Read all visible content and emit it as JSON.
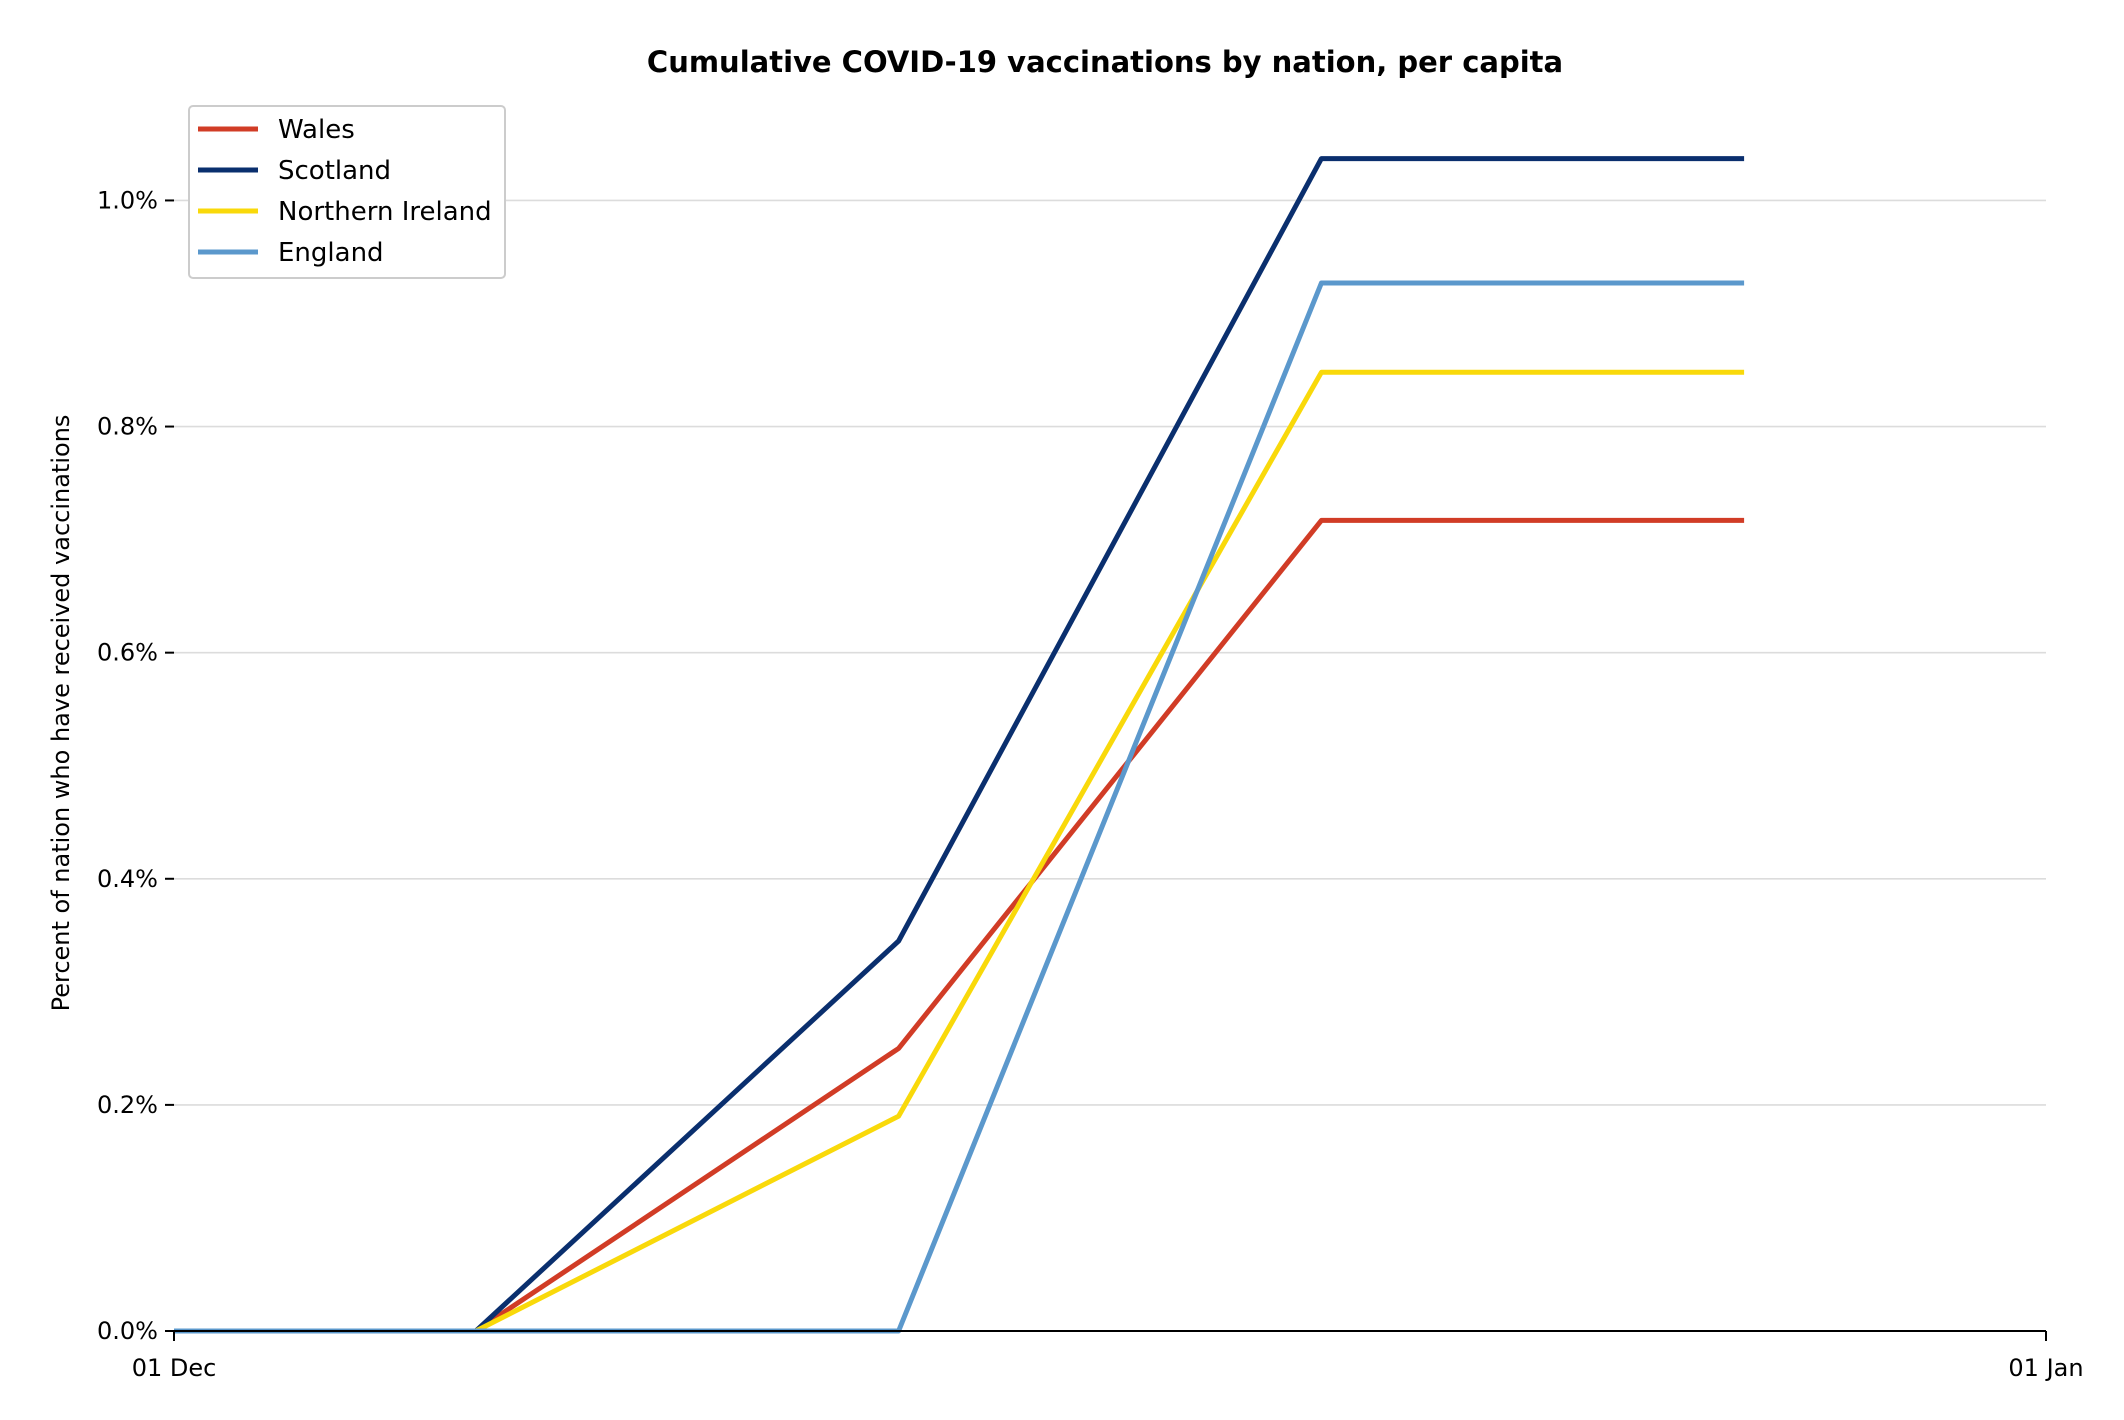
{
  "chart_data": {
    "type": "line",
    "title": "Cumulative COVID-19 vaccinations by nation, per capita",
    "xlabel": "",
    "ylabel": "Percent of nation who have received vaccinations",
    "x": [
      "2020-12-01",
      "2020-12-06",
      "2020-12-13",
      "2020-12-20",
      "2020-12-27"
    ],
    "xlim": [
      "2020-12-01",
      "2021-01-01"
    ],
    "xticks": [
      {
        "date": "2020-12-01",
        "label": "01 Dec"
      },
      {
        "date": "2021-01-01",
        "label": "01 Jan"
      }
    ],
    "ylim": [
      0,
      1.08
    ],
    "yticks": [
      0,
      0.2,
      0.4,
      0.6,
      0.8,
      1.0
    ],
    "ytick_labels": [
      "0.0%",
      "0.2%",
      "0.4%",
      "0.6%",
      "0.8%",
      "1.0%"
    ],
    "grid": true,
    "legend_position": "top-left",
    "series": [
      {
        "name": "Wales",
        "color": "#d13c26",
        "values": [
          0,
          0,
          0.25,
          0.717,
          0.717
        ]
      },
      {
        "name": "Scotland",
        "color": "#0a2f6e",
        "values": [
          0,
          0,
          0.345,
          1.037,
          1.037
        ]
      },
      {
        "name": "Northern Ireland",
        "color": "#f9d90a",
        "values": [
          0,
          0,
          0.19,
          0.848,
          0.848
        ]
      },
      {
        "name": "England",
        "color": "#5b98cc",
        "values": [
          0,
          0,
          0,
          0.927,
          0.927
        ]
      }
    ]
  }
}
